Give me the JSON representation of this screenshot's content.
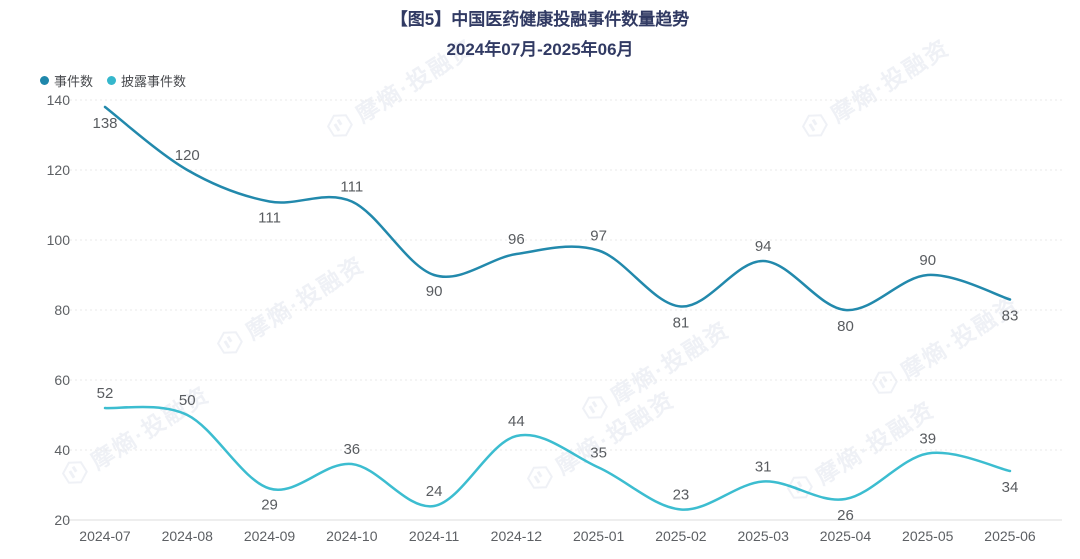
{
  "title": "【图5】中国医药健康投融事件数量趋势",
  "subtitle": "2024年07月-2025年06月",
  "watermark": "摩熵·投融资",
  "colors": {
    "series1": "#2289ac",
    "series2": "#3cbdd0",
    "title": "#313a63",
    "tick": "#5d6064",
    "data_label": "#595c60",
    "grid": "#e9e9e9",
    "axis_line": "#dedede"
  },
  "legend": [
    {
      "label": "事件数",
      "color": "#1f87ab"
    },
    {
      "label": "披露事件数",
      "color": "#35b7cc"
    }
  ],
  "chart_data": {
    "type": "line",
    "title": "【图5】中国医药健康投融事件数量趋势 2024年07月-2025年06月",
    "x": [
      "2024-07",
      "2024-08",
      "2024-09",
      "2024-10",
      "2024-11",
      "2024-12",
      "2025-01",
      "2025-02",
      "2025-03",
      "2025-04",
      "2025-05",
      "2025-06"
    ],
    "series": [
      {
        "name": "事件数",
        "values": [
          138,
          120,
          111,
          111,
          90,
          96,
          97,
          81,
          94,
          80,
          90,
          83
        ]
      },
      {
        "name": "披露事件数",
        "values": [
          52,
          50,
          29,
          36,
          24,
          44,
          35,
          23,
          31,
          26,
          39,
          34
        ]
      }
    ],
    "xlabel": "",
    "ylabel": "",
    "ylim": [
      20,
      140
    ],
    "yticks": [
      20,
      40,
      60,
      80,
      100,
      120,
      140
    ],
    "grid": true,
    "grid_style": "dotted-horizontal",
    "legend_position": "top-left",
    "smooth": true,
    "markers": false,
    "data_labels": true
  }
}
